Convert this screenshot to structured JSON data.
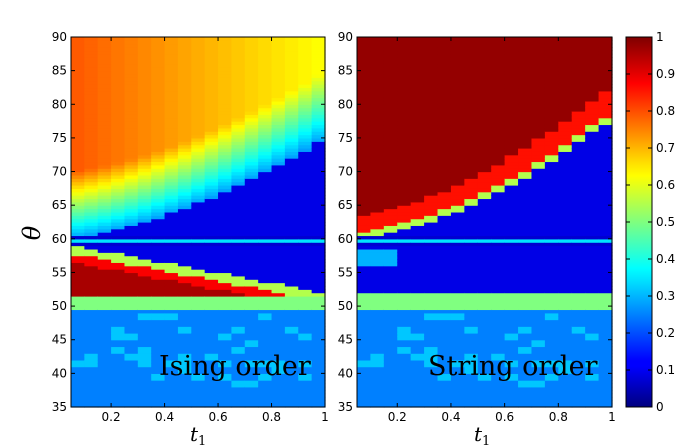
{
  "chart_data": [
    {
      "type": "heatmap",
      "title": "",
      "annotation": "Ising order",
      "xlabel": "t",
      "xlabel_sub": "1",
      "ylabel": "θ",
      "xlim": [
        0.05,
        1
      ],
      "ylim": [
        35,
        90
      ],
      "xticks": [
        0.2,
        0.4,
        0.6,
        0.8,
        1
      ],
      "xtick_labels": [
        "0.2",
        "0.4",
        "0.6",
        "0.8",
        "1"
      ],
      "yticks": [
        35,
        40,
        45,
        50,
        55,
        60,
        65,
        70,
        75,
        80,
        85,
        90
      ],
      "ytick_labels": [
        "35",
        "40",
        "45",
        "50",
        "55",
        "60",
        "65",
        "70",
        "75",
        "80",
        "85",
        "90"
      ],
      "colormap": "jet",
      "grid": {
        "x_centers": [
          0.075,
          0.125,
          0.175,
          0.225,
          0.275,
          0.325,
          0.375,
          0.425,
          0.475,
          0.525,
          0.575,
          0.625,
          0.675,
          0.725,
          0.775,
          0.825,
          0.875,
          0.925,
          0.975
        ],
        "approx_regions": [
          {
            "theta_range": [
              60.5,
              90
            ],
            "description": "upper fan: ~0.5 at low t1 falling to ~0.3 near boundary, ~0.1 right of boundary 60+15*t1^1.6"
          },
          {
            "theta_range": [
              59,
              60.5
            ],
            "description": "narrow band ~0.08 with line near 59.7 ~0.35"
          },
          {
            "theta_range": [
              51.5,
              59
            ],
            "description": "lower lobe: ~0.95 at low t1, boundary 59.5-7.5*t1, ~0.1 below/right"
          },
          {
            "theta_range": [
              49.5,
              51.5
            ],
            "description": "band ~0.5"
          },
          {
            "theta_range": [
              35,
              49.5
            ],
            "description": "~0.25 with scattered ~0.3 cells"
          }
        ]
      }
    },
    {
      "type": "heatmap",
      "title": "",
      "annotation": "String order",
      "xlabel": "t",
      "xlabel_sub": "1",
      "ylabel": "",
      "xlim": [
        0.05,
        1
      ],
      "ylim": [
        35,
        90
      ],
      "xticks": [
        0.2,
        0.4,
        0.6,
        0.8,
        1
      ],
      "xtick_labels": [
        "0.2",
        "0.4",
        "0.6",
        "0.8",
        "1"
      ],
      "yticks": [
        35,
        40,
        45,
        50,
        55,
        60,
        65,
        70,
        75,
        80,
        85,
        90
      ],
      "ytick_labels": [
        "35",
        "40",
        "45",
        "50",
        "55",
        "60",
        "65",
        "70",
        "75",
        "80",
        "85",
        "90"
      ],
      "colormap": "jet",
      "grid": {
        "x_centers": [
          0.075,
          0.125,
          0.175,
          0.225,
          0.275,
          0.325,
          0.375,
          0.425,
          0.475,
          0.525,
          0.575,
          0.625,
          0.675,
          0.725,
          0.775,
          0.825,
          0.875,
          0.925,
          0.975
        ],
        "approx_regions": [
          {
            "theta_range": [
              60.5,
              90
            ],
            "description": "~0.98 above boundary 60+18*t1^1.7 (red band ~0.85 near it), ~0.1 below"
          },
          {
            "theta_range": [
              59,
              60.5
            ],
            "description": "~0.08 with line near 59.7 ~0.35"
          },
          {
            "theta_range": [
              52,
              59
            ],
            "description": "~0.1, light patch ~0.3 at low t1 near 56-58"
          },
          {
            "theta_range": [
              49.5,
              52
            ],
            "description": "band ~0.5"
          },
          {
            "theta_range": [
              35,
              49.5
            ],
            "description": "~0.25 with scattered ~0.3 cells"
          }
        ]
      }
    }
  ],
  "colorbar": {
    "min": 0,
    "max": 1,
    "ticks": [
      0,
      0.1,
      0.2,
      0.3,
      0.4,
      0.5,
      0.6,
      0.7,
      0.8,
      0.9,
      1
    ],
    "tick_labels": [
      "0",
      "0.1",
      "0.2",
      "0.3",
      "0.4",
      "0.5",
      "0.6",
      "0.7",
      "0.8",
      "0.9",
      "1"
    ]
  }
}
